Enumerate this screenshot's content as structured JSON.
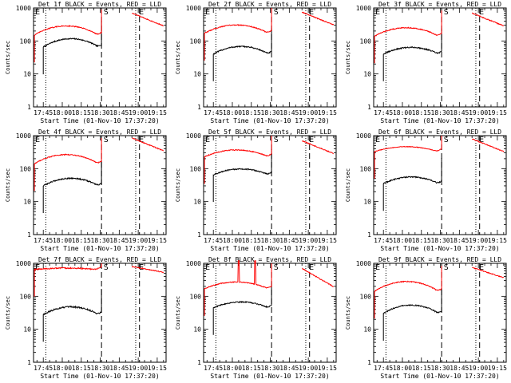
{
  "figure": {
    "background": "#ffffff",
    "axis_color": "#000000"
  },
  "colors": {
    "events": "#000000",
    "lld": "#ff0000"
  },
  "chart_data": [
    {
      "type": "line",
      "title": "Det 1f BLACK = Events, RED = LLD",
      "xlabel": "Start Time (01-Nov-10 17:37:20)",
      "ylabel": "Counts/sec",
      "y_scale": "log",
      "ylim": [
        1,
        1000
      ],
      "y_tick_labels": [
        "1",
        "10",
        "100",
        "1000"
      ],
      "x_tick_labels": [
        "17:45",
        "18:00",
        "18:15",
        "18:30",
        "18:45",
        "19:00",
        "19:15"
      ],
      "markers": {
        "dotted_lines": [
          "17:47",
          "18:58"
        ],
        "dashed_lines": [
          "18:31",
          "19:01"
        ],
        "letters": [
          {
            "text": "E",
            "at": "17:38"
          },
          {
            "text": "S",
            "at": "18:32"
          },
          {
            "text": "E",
            "at": "19:00"
          }
        ]
      },
      "series": [
        {
          "name": "Events",
          "color": "#000000",
          "start": "17:45",
          "end": "18:31",
          "base": 65,
          "bump": 1.8,
          "noise": 0.04
        },
        {
          "name": "LLD",
          "color": "#ff0000",
          "start": "17:38",
          "end": "18:31",
          "base": 150,
          "bump": 1.9,
          "noise": 0.03
        },
        {
          "name": "LLD",
          "color": "#ff0000",
          "start": "18:55",
          "end": "19:20",
          "base": 700,
          "decay": 0.7,
          "noise": 0.03
        }
      ]
    },
    {
      "type": "line",
      "title": "Det 2f BLACK = Events, RED = LLD",
      "xlabel": "Start Time (01-Nov-10 17:37:20)",
      "ylabel": "Counts/sec",
      "y_scale": "log",
      "ylim": [
        1,
        1000
      ],
      "y_tick_labels": [
        "1",
        "10",
        "100",
        "1000"
      ],
      "x_tick_labels": [
        "17:45",
        "18:00",
        "18:15",
        "18:30",
        "18:45",
        "19:00",
        "19:15"
      ],
      "markers": {
        "dotted_lines": [
          "17:47",
          "18:58"
        ],
        "dashed_lines": [
          "18:31",
          "19:01"
        ],
        "letters": [
          {
            "text": "E",
            "at": "17:38"
          },
          {
            "text": "S",
            "at": "18:32"
          },
          {
            "text": "E",
            "at": "19:00"
          }
        ]
      },
      "series": [
        {
          "name": "Events",
          "color": "#000000",
          "start": "17:45",
          "end": "18:31",
          "base": 40,
          "bump": 1.7,
          "noise": 0.04
        },
        {
          "name": "LLD",
          "color": "#ff0000",
          "start": "17:38",
          "end": "18:31",
          "base": 170,
          "bump": 1.8,
          "noise": 0.03
        },
        {
          "name": "LLD",
          "color": "#ff0000",
          "start": "18:55",
          "end": "19:20",
          "base": 750,
          "decay": 0.7,
          "noise": 0.03
        }
      ]
    },
    {
      "type": "line",
      "title": "Det 3f BLACK = Events, RED = LLD",
      "xlabel": "Start Time (01-Nov-10 17:37:20)",
      "ylabel": "Counts/sec",
      "y_scale": "log",
      "ylim": [
        1,
        1000
      ],
      "y_tick_labels": [
        "1",
        "10",
        "100",
        "1000"
      ],
      "x_tick_labels": [
        "17:45",
        "18:00",
        "18:15",
        "18:30",
        "18:45",
        "19:00",
        "19:15"
      ],
      "markers": {
        "dotted_lines": [
          "17:47",
          "18:58"
        ],
        "dashed_lines": [
          "18:31",
          "19:01"
        ],
        "letters": [
          {
            "text": "E",
            "at": "17:38"
          },
          {
            "text": "S",
            "at": "18:32"
          },
          {
            "text": "E",
            "at": "19:00"
          }
        ]
      },
      "series": [
        {
          "name": "Events",
          "color": "#000000",
          "start": "17:45",
          "end": "18:31",
          "base": 40,
          "bump": 1.6,
          "noise": 0.04
        },
        {
          "name": "LLD",
          "color": "#ff0000",
          "start": "17:38",
          "end": "18:31",
          "base": 140,
          "bump": 1.8,
          "noise": 0.03
        },
        {
          "name": "LLD",
          "color": "#ff0000",
          "start": "18:55",
          "end": "19:20",
          "base": 700,
          "decay": 0.7,
          "noise": 0.03
        }
      ]
    },
    {
      "type": "line",
      "title": "Det 4f BLACK = Events, RED = LLD",
      "xlabel": "Start Time (01-Nov-10 17:37:20)",
      "ylabel": "Counts/sec",
      "y_scale": "log",
      "ylim": [
        1,
        1000
      ],
      "y_tick_labels": [
        "1",
        "10",
        "100",
        "1000"
      ],
      "x_tick_labels": [
        "17:45",
        "18:00",
        "18:15",
        "18:30",
        "18:45",
        "19:00",
        "19:15"
      ],
      "markers": {
        "dotted_lines": [
          "17:47",
          "18:58"
        ],
        "dashed_lines": [
          "18:31",
          "19:01"
        ],
        "letters": [
          {
            "text": "E",
            "at": "17:38"
          },
          {
            "text": "S",
            "at": "18:32"
          },
          {
            "text": "E",
            "at": "19:00"
          }
        ]
      },
      "series": [
        {
          "name": "Events",
          "color": "#000000",
          "start": "17:45",
          "end": "18:31",
          "base": 30,
          "bump": 1.7,
          "noise": 0.04
        },
        {
          "name": "LLD",
          "color": "#ff0000",
          "start": "17:38",
          "end": "18:31",
          "base": 140,
          "bump": 1.9,
          "noise": 0.03
        },
        {
          "name": "LLD",
          "color": "#ff0000",
          "start": "18:55",
          "end": "19:20",
          "base": 850,
          "decay": 0.7,
          "noise": 0.03
        }
      ]
    },
    {
      "type": "line",
      "title": "Det 5f BLACK = Events, RED = LLD",
      "xlabel": "Start Time (01-Nov-10 17:37:20)",
      "ylabel": "Counts/sec",
      "y_scale": "log",
      "ylim": [
        1,
        1000
      ],
      "y_tick_labels": [
        "1",
        "10",
        "100",
        "1000"
      ],
      "x_tick_labels": [
        "17:45",
        "18:00",
        "18:15",
        "18:30",
        "18:45",
        "19:00",
        "19:15"
      ],
      "markers": {
        "dotted_lines": [
          "17:47",
          "18:58"
        ],
        "dashed_lines": [
          "18:31",
          "19:01"
        ],
        "letters": [
          {
            "text": "E",
            "at": "17:38"
          },
          {
            "text": "S",
            "at": "18:32"
          },
          {
            "text": "E",
            "at": "19:00"
          }
        ]
      },
      "series": [
        {
          "name": "Events",
          "color": "#000000",
          "start": "17:45",
          "end": "18:31",
          "base": 65,
          "bump": 1.5,
          "noise": 0.04
        },
        {
          "name": "LLD",
          "color": "#ff0000",
          "start": "17:38",
          "end": "18:31",
          "base": 230,
          "bump": 1.6,
          "noise": 0.03
        },
        {
          "name": "LLD",
          "color": "#ff0000",
          "start": "18:55",
          "end": "19:20",
          "base": 700,
          "decay": 0.7,
          "noise": 0.03
        }
      ]
    },
    {
      "type": "line",
      "title": "Det 6f BLACK = Events, RED = LLD",
      "xlabel": "Start Time (01-Nov-10 17:37:20)",
      "ylabel": "Counts/sec",
      "y_scale": "log",
      "ylim": [
        1,
        1000
      ],
      "y_tick_labels": [
        "1",
        "10",
        "100",
        "1000"
      ],
      "x_tick_labels": [
        "17:45",
        "18:00",
        "18:15",
        "18:30",
        "18:45",
        "19:00",
        "19:15"
      ],
      "markers": {
        "dotted_lines": [
          "17:47",
          "18:58"
        ],
        "dashed_lines": [
          "18:31",
          "19:01"
        ],
        "letters": [
          {
            "text": "E",
            "at": "17:38"
          },
          {
            "text": "S",
            "at": "18:32"
          },
          {
            "text": "E",
            "at": "19:00"
          }
        ]
      },
      "series": [
        {
          "name": "Events",
          "color": "#000000",
          "start": "17:45",
          "end": "18:31",
          "base": 35,
          "bump": 1.6,
          "noise": 0.04
        },
        {
          "name": "LLD",
          "color": "#ff0000",
          "start": "17:38",
          "end": "18:31",
          "base": 330,
          "bump": 1.4,
          "noise": 0.02
        },
        {
          "name": "LLD",
          "color": "#ff0000",
          "start": "18:55",
          "end": "19:20",
          "base": 800,
          "decay": 0.7,
          "noise": 0.03
        }
      ]
    },
    {
      "type": "line",
      "title": "Det 7f BLACK = Events, RED = LLD",
      "xlabel": "Start Time (01-Nov-10 17:37:20)",
      "ylabel": "Counts/sec",
      "y_scale": "log",
      "ylim": [
        1,
        1000
      ],
      "y_tick_labels": [
        "1",
        "10",
        "100",
        "1000"
      ],
      "x_tick_labels": [
        "17:45",
        "18:00",
        "18:15",
        "18:30",
        "18:45",
        "19:00",
        "19:15"
      ],
      "markers": {
        "dotted_lines": [
          "17:47",
          "18:58"
        ],
        "dashed_lines": [
          "18:31",
          "19:01"
        ],
        "letters": [
          {
            "text": "E",
            "at": "17:38"
          },
          {
            "text": "S",
            "at": "18:32"
          },
          {
            "text": "E",
            "at": "19:00"
          }
        ]
      },
      "series": [
        {
          "name": "Events",
          "color": "#000000",
          "start": "17:45",
          "end": "18:31",
          "base": 28,
          "bump": 1.7,
          "noise": 0.05
        },
        {
          "name": "LLD",
          "color": "#ff0000",
          "start": "17:38",
          "end": "18:31",
          "base": 650,
          "bump": 1.1,
          "noise": 0.04
        },
        {
          "name": "LLD",
          "color": "#ff0000",
          "start": "18:55",
          "end": "19:20",
          "base": 800,
          "decay": 0.85,
          "noise": 0.03
        }
      ]
    },
    {
      "type": "line",
      "title": "Det 8f BLACK = Events, RED = LLD",
      "xlabel": "Start Time (01-Nov-10 17:37:20)",
      "ylabel": "Counts/sec",
      "y_scale": "log",
      "ylim": [
        1,
        1000
      ],
      "y_tick_labels": [
        "1",
        "10",
        "100",
        "1000"
      ],
      "x_tick_labels": [
        "17:45",
        "18:00",
        "18:15",
        "18:30",
        "18:45",
        "19:00",
        "19:15"
      ],
      "markers": {
        "dotted_lines": [
          "17:47",
          "18:58"
        ],
        "dashed_lines": [
          "18:31",
          "19:01"
        ],
        "letters": [
          {
            "text": "E",
            "at": "17:38"
          },
          {
            "text": "S",
            "at": "18:32"
          },
          {
            "text": "E",
            "at": "19:00"
          }
        ]
      },
      "series": [
        {
          "name": "Events",
          "color": "#000000",
          "start": "17:45",
          "end": "18:31",
          "base": 45,
          "bump": 1.5,
          "noise": 0.04
        },
        {
          "name": "LLD",
          "color": "#ff0000",
          "start": "17:38",
          "end": "18:31",
          "base": 170,
          "bump": 1.6,
          "noise": 0.03,
          "spikes": [
            "18:05",
            "18:18"
          ]
        },
        {
          "name": "LLD",
          "color": "#ff0000",
          "start": "18:55",
          "end": "19:20",
          "base": 700,
          "decay": 0.6,
          "noise": 0.03
        }
      ]
    },
    {
      "type": "line",
      "title": "Det 9f BLACK = Events, RED = LLD",
      "xlabel": "Start Time (01-Nov-10 17:37:20)",
      "ylabel": "Counts/sec",
      "y_scale": "log",
      "ylim": [
        1,
        1000
      ],
      "y_tick_labels": [
        "1",
        "10",
        "100",
        "1000"
      ],
      "x_tick_labels": [
        "17:45",
        "18:00",
        "18:15",
        "18:30",
        "18:45",
        "19:00",
        "19:15"
      ],
      "markers": {
        "dotted_lines": [
          "17:47",
          "18:58"
        ],
        "dashed_lines": [
          "18:31",
          "19:01"
        ],
        "letters": [
          {
            "text": "E",
            "at": "17:38"
          },
          {
            "text": "S",
            "at": "18:32"
          },
          {
            "text": "E",
            "at": "19:00"
          }
        ]
      },
      "series": [
        {
          "name": "Events",
          "color": "#000000",
          "start": "17:45",
          "end": "18:31",
          "base": 30,
          "bump": 1.8,
          "noise": 0.04
        },
        {
          "name": "LLD",
          "color": "#ff0000",
          "start": "17:38",
          "end": "18:31",
          "base": 140,
          "bump": 2.0,
          "noise": 0.03
        },
        {
          "name": "LLD",
          "color": "#ff0000",
          "start": "18:55",
          "end": "19:20",
          "base": 750,
          "decay": 0.75,
          "noise": 0.03
        }
      ]
    }
  ]
}
